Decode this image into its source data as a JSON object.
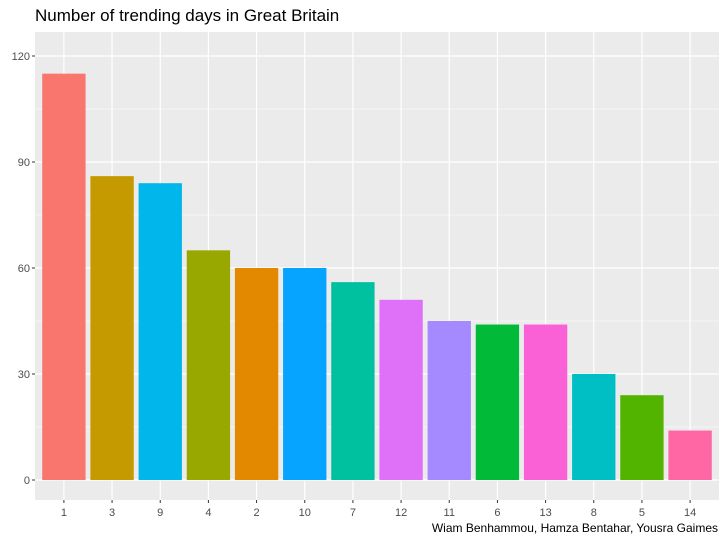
{
  "chart_data": {
    "type": "bar",
    "title": "Number of trending days in Great Britain",
    "caption": "Wiam Benhammou, Hamza Bentahar, Yousra Gaimes",
    "xlabel": "",
    "ylabel": "",
    "categories": [
      "1",
      "3",
      "9",
      "4",
      "2",
      "10",
      "7",
      "12",
      "11",
      "6",
      "13",
      "8",
      "5",
      "14"
    ],
    "values": [
      115,
      86,
      84,
      65,
      60,
      60,
      56,
      51,
      45,
      44,
      44,
      30,
      24,
      14
    ],
    "colors": [
      "#F8766D",
      "#C49A00",
      "#00B6EB",
      "#99A800",
      "#E38900",
      "#06A4FF",
      "#00C19F",
      "#DF70F8",
      "#A58AFF",
      "#00BA38",
      "#FB61D7",
      "#00BFC4",
      "#53B400",
      "#FF67A4"
    ],
    "ylim": [
      0,
      120
    ],
    "yticks": [
      0,
      30,
      60,
      90,
      120
    ],
    "grid": true,
    "legend": "none",
    "panel_background": "#EBEBEB",
    "grid_color": "#FFFFFF"
  }
}
